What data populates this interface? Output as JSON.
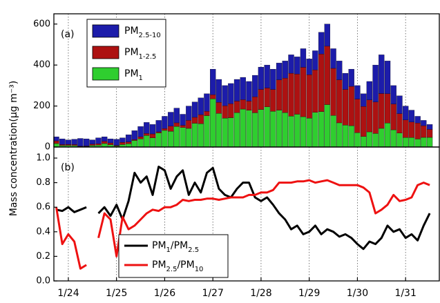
{
  "chart_data": [
    {
      "type": "stacked_bar",
      "panel_label": "(a)",
      "y_label": "Mass concentration(μg m⁻³)",
      "xlim": [
        23.7,
        31.7
      ],
      "ylim": [
        0,
        650
      ],
      "yticks": [
        0,
        200,
        400,
        600
      ],
      "grid": true,
      "x": [
        23.75,
        23.875,
        24,
        24.125,
        24.25,
        24.375,
        24.5,
        24.625,
        24.75,
        24.875,
        25,
        25.125,
        25.25,
        25.375,
        25.5,
        25.625,
        25.75,
        25.875,
        26,
        26.125,
        26.25,
        26.375,
        26.5,
        26.625,
        26.75,
        26.875,
        27,
        27.125,
        27.25,
        27.375,
        27.5,
        27.625,
        27.75,
        27.875,
        28,
        28.125,
        28.25,
        28.375,
        28.5,
        28.625,
        28.75,
        28.875,
        29,
        29.125,
        29.25,
        29.375,
        29.5,
        29.625,
        29.75,
        29.875,
        30,
        30.125,
        30.25,
        30.375,
        30.5,
        30.625,
        30.75,
        30.875,
        31,
        31.125,
        31.25,
        31.375,
        31.5
      ],
      "series": [
        {
          "name": "PM1",
          "color": "#2fce2f",
          "values": [
            17,
            7,
            8,
            7,
            2,
            3,
            8,
            9,
            17,
            11,
            5,
            12,
            16,
            32,
            40,
            56,
            45,
            69,
            81,
            77,
            100,
            95,
            91,
            116,
            114,
            153,
            235,
            164,
            141,
            143,
            168,
            185,
            179,
            167,
            183,
            196,
            174,
            180,
            168,
            151,
            160,
            148,
            141,
            169,
            173,
            207,
            154,
            118,
            107,
            104,
            70,
            51,
            74,
            66,
            91,
            117,
            84,
            68,
            46,
            46,
            39,
            47,
            47
          ]
        },
        {
          "name": "PM1-2.5",
          "color": "#ad1111",
          "values": [
            13,
            5,
            5,
            5,
            2,
            2,
            6,
            7,
            11,
            9,
            3,
            11,
            9,
            4,
            10,
            10,
            19,
            5,
            9,
            25,
            18,
            11,
            39,
            29,
            44,
            21,
            20,
            54,
            60,
            68,
            56,
            46,
            45,
            78,
            98,
            92,
            107,
            148,
            168,
            209,
            196,
            241,
            212,
            207,
            281,
            285,
            230,
            210,
            174,
            192,
            164,
            147,
            156,
            154,
            170,
            143,
            126,
            95,
            86,
            76,
            78,
            57,
            39
          ]
        },
        {
          "name": "PM2.5-10",
          "color": "#1c1caa",
          "values": [
            20,
            28,
            22,
            26,
            38,
            35,
            21,
            29,
            22,
            20,
            30,
            22,
            35,
            44,
            50,
            54,
            46,
            56,
            60,
            68,
            72,
            54,
            70,
            75,
            82,
            86,
            125,
            112,
            99,
            99,
            106,
            109,
            96,
            105,
            109,
            112,
            99,
            82,
            84,
            90,
            84,
            91,
            77,
            94,
            106,
            108,
            96,
            92,
            79,
            84,
            66,
            62,
            90,
            180,
            189,
            160,
            90,
            87,
            68,
            58,
            33,
            26,
            24
          ]
        }
      ]
    },
    {
      "type": "line",
      "panel_label": "(b)",
      "xlim": [
        23.7,
        31.7
      ],
      "ylim": [
        0,
        1.09
      ],
      "yticks": [
        {
          "value": 0,
          "label": "0.0"
        },
        0.2,
        0.4,
        0.6,
        0.8,
        {
          "value": 1,
          "label": "1.0"
        }
      ],
      "xticks": [
        {
          "value": 24,
          "label": "1/24"
        },
        {
          "value": 25,
          "label": "1/25"
        },
        {
          "value": 26,
          "label": "1/26"
        },
        {
          "value": 27,
          "label": "1/27"
        },
        {
          "value": 28,
          "label": "1/28"
        },
        {
          "value": 29,
          "label": "1/29"
        },
        {
          "value": 30,
          "label": "1/30"
        },
        {
          "value": 31,
          "label": "1/31"
        }
      ],
      "grid": true,
      "x": [
        23.75,
        23.875,
        24,
        24.125,
        24.25,
        24.375,
        24.5,
        24.625,
        24.75,
        24.875,
        25,
        25.125,
        25.25,
        25.375,
        25.5,
        25.625,
        25.75,
        25.875,
        26,
        26.125,
        26.25,
        26.375,
        26.5,
        26.625,
        26.75,
        26.875,
        27,
        27.125,
        27.25,
        27.375,
        27.5,
        27.625,
        27.75,
        27.875,
        28,
        28.125,
        28.25,
        28.375,
        28.5,
        28.625,
        28.75,
        28.875,
        29,
        29.125,
        29.25,
        29.375,
        29.5,
        29.625,
        29.75,
        29.875,
        30,
        30.125,
        30.25,
        30.375,
        30.5,
        30.625,
        30.75,
        30.875,
        31,
        31.125,
        31.25,
        31.375,
        31.5
      ],
      "series": [
        {
          "name": "PM1/PM2.5",
          "color": "#000000",
          "values": [
            0.58,
            0.57,
            0.6,
            0.56,
            0.58,
            0.6,
            null,
            0.55,
            0.6,
            0.53,
            0.62,
            0.5,
            0.65,
            0.88,
            0.8,
            0.85,
            0.7,
            0.93,
            0.9,
            0.75,
            0.85,
            0.9,
            0.7,
            0.8,
            0.72,
            0.88,
            0.92,
            0.75,
            0.7,
            0.68,
            0.75,
            0.8,
            0.8,
            0.68,
            0.65,
            0.68,
            0.62,
            0.55,
            0.5,
            0.42,
            0.45,
            0.38,
            0.4,
            0.45,
            0.38,
            0.42,
            0.4,
            0.36,
            0.38,
            0.35,
            0.3,
            0.26,
            0.32,
            0.3,
            0.35,
            0.45,
            0.4,
            0.42,
            0.35,
            0.38,
            0.33,
            0.45,
            0.55
          ]
        },
        {
          "name": "PM2.5/PM10",
          "color": "#ee1111",
          "values": [
            0.6,
            0.3,
            0.38,
            0.32,
            0.1,
            0.13,
            null,
            0.35,
            0.55,
            0.5,
            0.2,
            0.52,
            0.42,
            0.45,
            0.5,
            0.55,
            0.58,
            0.57,
            0.6,
            0.6,
            0.62,
            0.66,
            0.65,
            0.66,
            0.66,
            0.67,
            0.67,
            0.66,
            0.67,
            0.68,
            0.68,
            0.68,
            0.7,
            0.7,
            0.72,
            0.72,
            0.74,
            0.8,
            0.8,
            0.8,
            0.81,
            0.81,
            0.82,
            0.8,
            0.81,
            0.82,
            0.8,
            0.78,
            0.78,
            0.78,
            0.78,
            0.76,
            0.72,
            0.55,
            0.58,
            0.62,
            0.7,
            0.65,
            0.66,
            0.68,
            0.78,
            0.8,
            0.78
          ]
        }
      ]
    }
  ]
}
